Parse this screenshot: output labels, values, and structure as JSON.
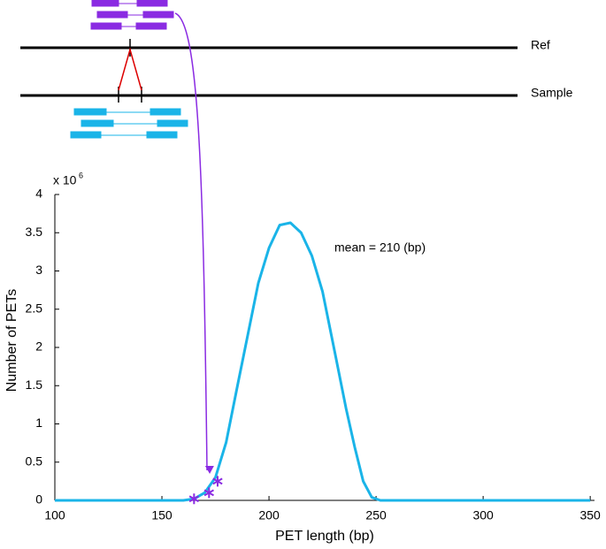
{
  "chart_data": {
    "type": "line",
    "x_label": "PET length (bp)",
    "y_label": "Number of PETs",
    "y_scale_base": "x 10",
    "y_scale_exponent": "6",
    "annotation": "mean = 210 (bp)",
    "diagram_labels": [
      "Ref",
      "Sample"
    ],
    "xlim": [
      100,
      352
    ],
    "xticks": [
      100,
      150,
      200,
      250,
      300,
      350
    ],
    "ylim": [
      0,
      4
    ],
    "yticks": [
      0,
      0.5,
      1,
      1.5,
      2,
      2.5,
      3,
      3.5,
      4
    ],
    "x": [
      100,
      120,
      140,
      160,
      165,
      170,
      175,
      180,
      185,
      190,
      195,
      200,
      205,
      210,
      215,
      220,
      225,
      231,
      236,
      240,
      244,
      248,
      252,
      270,
      300,
      330,
      350
    ],
    "series": [
      {
        "color": "#1ab4e8",
        "values": [
          0,
          0,
          0,
          0,
          0.02,
          0.1,
          0.3,
          0.76,
          1.46,
          2.15,
          2.84,
          3.3,
          3.6,
          3.63,
          3.5,
          3.2,
          2.73,
          1.9,
          1.2,
          0.7,
          0.25,
          0.04,
          0,
          0,
          0,
          0,
          0
        ]
      }
    ],
    "markers": {
      "color": "#8a2be2",
      "x": [
        165,
        172,
        176
      ],
      "values": [
        0.02,
        0.1,
        0.25
      ]
    }
  }
}
